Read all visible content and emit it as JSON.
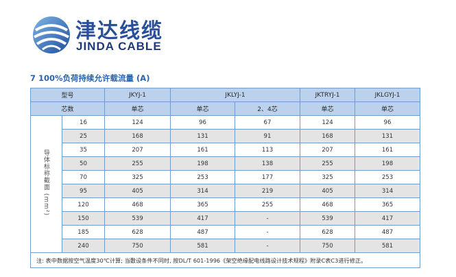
{
  "brand": {
    "name_cn": "津达线缆",
    "name_en": "JINDA CABLE"
  },
  "section_title": "7  100%负荷持续允许载流量 (A)",
  "table": {
    "header_row1": {
      "label": "型号",
      "col1": "JKYJ-1",
      "col2": "JKLYJ-1",
      "col3": "JKTRYJ-1",
      "col4": "JKLGYJ-1"
    },
    "header_row2": {
      "label": "芯数",
      "col1": "单芯",
      "col2a": "单芯",
      "col2b": "2、4芯",
      "col3": "单芯",
      "col4": "单芯"
    },
    "ylabel": "导体标称截面 (mm²)",
    "rows": [
      [
        "16",
        "124",
        "96",
        "67",
        "124",
        "96"
      ],
      [
        "25",
        "168",
        "131",
        "91",
        "168",
        "131"
      ],
      [
        "35",
        "207",
        "161",
        "113",
        "207",
        "161"
      ],
      [
        "50",
        "255",
        "198",
        "138",
        "255",
        "198"
      ],
      [
        "70",
        "325",
        "253",
        "177",
        "325",
        "253"
      ],
      [
        "95",
        "405",
        "314",
        "219",
        "405",
        "314"
      ],
      [
        "120",
        "468",
        "365",
        "255",
        "468",
        "365"
      ],
      [
        "150",
        "539",
        "417",
        "-",
        "539",
        "417"
      ],
      [
        "185",
        "628",
        "487",
        "-",
        "628",
        "487"
      ],
      [
        "240",
        "750",
        "581",
        "-",
        "750",
        "581"
      ]
    ],
    "note": "注: 表中数据按空气温度30℃计算; 当敷设条件不同时, 按DL/T 601-1996《架空绝缘配电线路设计技术规程》附录C表C3进行修正。"
  },
  "colors": {
    "header_bg": "#bcd2ec",
    "border": "#6f9bcf",
    "row_shade": "#e4e4e4",
    "title": "#2a64ae",
    "brand": "#2a4f9a"
  }
}
